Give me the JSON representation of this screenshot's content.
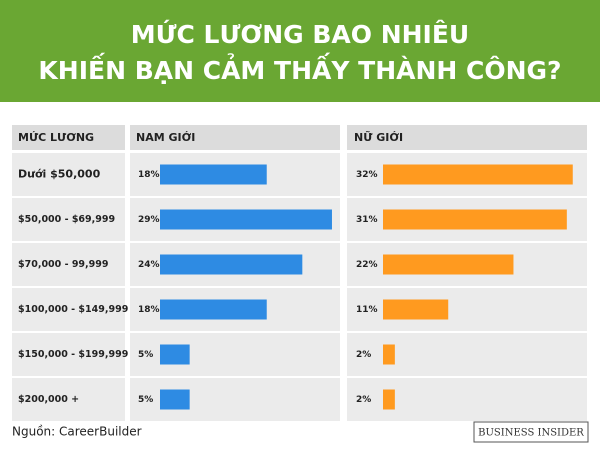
{
  "chart_data": {
    "type": "bar",
    "orientation": "horizontal",
    "title": [
      "MỨC LƯƠNG BAO NHIÊU",
      "KHIẾN BẠN CẢM THẤY THÀNH CÔNG?"
    ],
    "category_label": "MỨC LƯƠNG",
    "categories": [
      "Dưới  $50,000",
      "$50,000 - $69,999",
      "$70,000 - 99,999",
      "$100,000 - $149,999",
      "$150,000 - $199,999",
      "$200,000 +"
    ],
    "series": [
      {
        "name": "NAM GIỚI",
        "color": "#2e8be3",
        "values": [
          18,
          29,
          24,
          18,
          5,
          5
        ],
        "value_labels": [
          "18%",
          "29%",
          "24%",
          "18%",
          "5%",
          "5%"
        ]
      },
      {
        "name": "NỮ GIỚI",
        "color": "#ff9a1f",
        "values": [
          32,
          31,
          22,
          11,
          2,
          2
        ],
        "value_labels": [
          "32%",
          "31%",
          "22%",
          "11%",
          "2%",
          "2%"
        ]
      }
    ],
    "source": "Nguồn: CareerBuilder",
    "brand": "BUSINESS INSIDER"
  }
}
